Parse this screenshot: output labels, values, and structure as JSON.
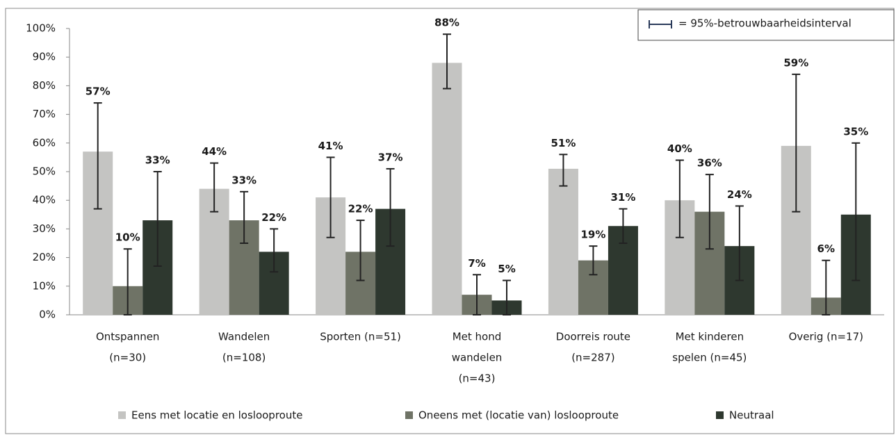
{
  "chart_data": {
    "type": "bar",
    "annotation": "= 95%-betrouwbaarheidsinterval",
    "categories": [
      [
        "Ontspannen",
        "(n=30)"
      ],
      [
        "Wandelen",
        "(n=108)"
      ],
      [
        "Sporten (n=51)"
      ],
      [
        "Met hond",
        "wandelen",
        "(n=43)"
      ],
      [
        "Doorreis route",
        "(n=287)"
      ],
      [
        "Met kinderen",
        "spelen (n=45)"
      ],
      [
        "Overig (n=17)"
      ]
    ],
    "series": [
      {
        "name": "Eens met locatie en loslooproute",
        "color": "#c4c4c2",
        "values": [
          57,
          44,
          41,
          88,
          51,
          40,
          59
        ],
        "value_labels": [
          "57%",
          "44%",
          "41%",
          "88%",
          "51%",
          "40%",
          "59%"
        ],
        "ci_low": [
          37,
          36,
          27,
          79,
          45,
          27,
          36
        ],
        "ci_high": [
          74,
          53,
          55,
          98,
          56,
          54,
          84
        ]
      },
      {
        "name": "Oneens met (locatie van) loslooproute",
        "color": "#6f7366",
        "values": [
          10,
          33,
          22,
          7,
          19,
          36,
          6
        ],
        "value_labels": [
          "10%",
          "33%",
          "22%",
          "7%",
          "19%",
          "36%",
          "6%"
        ],
        "ci_low": [
          0,
          25,
          12,
          0,
          14,
          23,
          0
        ],
        "ci_high": [
          23,
          43,
          33,
          14,
          24,
          49,
          19
        ]
      },
      {
        "name": "Neutraal",
        "color": "#2e382f",
        "values": [
          33,
          22,
          37,
          5,
          31,
          24,
          35
        ],
        "value_labels": [
          "33%",
          "22%",
          "37%",
          "5%",
          "31%",
          "24%",
          "35%"
        ],
        "ci_low": [
          17,
          15,
          24,
          0,
          25,
          12,
          12
        ],
        "ci_high": [
          50,
          30,
          51,
          12,
          37,
          38,
          60
        ]
      }
    ],
    "ylim": [
      0,
      100
    ],
    "yticks": [
      {
        "value": 0,
        "label": "0%"
      },
      {
        "value": 10,
        "label": "10%"
      },
      {
        "value": 20,
        "label": "20%"
      },
      {
        "value": 30,
        "label": "30%"
      },
      {
        "value": 40,
        "label": "40%"
      },
      {
        "value": 50,
        "label": "50%"
      },
      {
        "value": 60,
        "label": "60%"
      },
      {
        "value": 70,
        "label": "70%"
      },
      {
        "value": 80,
        "label": "80%"
      },
      {
        "value": 90,
        "label": "90%"
      },
      {
        "value": 100,
        "label": "100%"
      }
    ],
    "legend": "bottom"
  }
}
